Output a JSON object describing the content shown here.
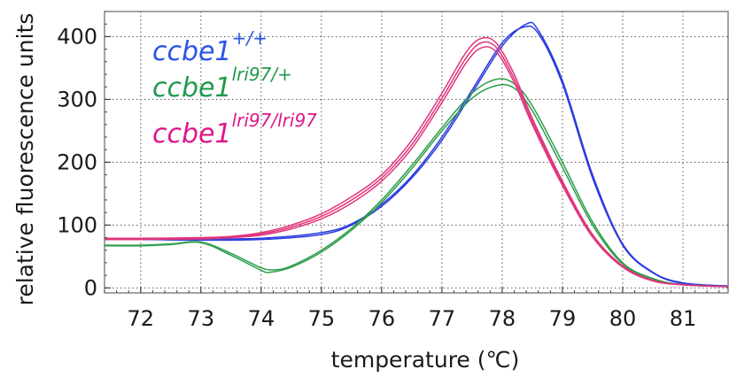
{
  "chart_data": {
    "type": "line",
    "title": "",
    "xlabel": "temperature (℃)",
    "ylabel": "relative fluorescence units",
    "xlim": [
      71.4,
      81.75
    ],
    "ylim": [
      -8,
      440
    ],
    "xticks": [
      72,
      73,
      74,
      75,
      76,
      77,
      78,
      79,
      80,
      81
    ],
    "yticks": [
      0,
      100,
      200,
      300,
      400
    ],
    "grid": true,
    "legend_position": "top-left",
    "series": [
      {
        "name": "ccbe1+/+",
        "label_base": "ccbe1",
        "label_sup": "+/+",
        "color": "#2a3be0",
        "label_color": "#2b55e6",
        "replicates": [
          [
            [
              71.4,
              77
            ],
            [
              72,
              77
            ],
            [
              73,
              76
            ],
            [
              74,
              77
            ],
            [
              75,
              85
            ],
            [
              75.5,
              100
            ],
            [
              76,
              130
            ],
            [
              76.5,
              175
            ],
            [
              77,
              235
            ],
            [
              77.5,
              310
            ],
            [
              78,
              385
            ],
            [
              78.4,
              420
            ],
            [
              78.6,
              410
            ],
            [
              79,
              330
            ],
            [
              79.5,
              180
            ],
            [
              80,
              70
            ],
            [
              80.5,
              25
            ],
            [
              81,
              8
            ],
            [
              81.75,
              3
            ]
          ],
          [
            [
              71.4,
              78
            ],
            [
              72,
              78
            ],
            [
              73,
              78
            ],
            [
              74,
              79
            ],
            [
              75,
              88
            ],
            [
              75.5,
              102
            ],
            [
              76,
              133
            ],
            [
              76.5,
              178
            ],
            [
              77,
              240
            ],
            [
              77.5,
              315
            ],
            [
              78,
              390
            ],
            [
              78.35,
              415
            ],
            [
              78.6,
              405
            ],
            [
              79,
              325
            ],
            [
              79.5,
              175
            ],
            [
              80,
              68
            ],
            [
              80.5,
              24
            ],
            [
              81,
              7
            ],
            [
              81.75,
              3
            ]
          ]
        ]
      },
      {
        "name": "ccbe1lri97/+",
        "label_base": "ccbe1",
        "label_sup": "lri97/+",
        "color": "#2e9e4a",
        "label_color": "#1f9a4c",
        "replicates": [
          [
            [
              71.4,
              68
            ],
            [
              72,
              68
            ],
            [
              72.5,
              70
            ],
            [
              73,
              73
            ],
            [
              73.5,
              55
            ],
            [
              74,
              32
            ],
            [
              74.25,
              29
            ],
            [
              74.5,
              35
            ],
            [
              75,
              60
            ],
            [
              75.5,
              95
            ],
            [
              76,
              140
            ],
            [
              76.5,
              195
            ],
            [
              77,
              255
            ],
            [
              77.5,
              310
            ],
            [
              77.9,
              332
            ],
            [
              78.2,
              325
            ],
            [
              78.5,
              290
            ],
            [
              79,
              200
            ],
            [
              79.5,
              105
            ],
            [
              80,
              40
            ],
            [
              80.5,
              15
            ],
            [
              81,
              5
            ],
            [
              81.75,
              2
            ]
          ],
          [
            [
              71.4,
              67
            ],
            [
              72,
              67
            ],
            [
              72.5,
              69
            ],
            [
              73,
              72
            ],
            [
              73.5,
              52
            ],
            [
              74,
              28
            ],
            [
              74.15,
              25
            ],
            [
              74.5,
              33
            ],
            [
              75,
              57
            ],
            [
              75.5,
              92
            ],
            [
              76,
              136
            ],
            [
              76.5,
              190
            ],
            [
              77,
              250
            ],
            [
              77.5,
              302
            ],
            [
              77.9,
              322
            ],
            [
              78.2,
              318
            ],
            [
              78.5,
              282
            ],
            [
              79,
              192
            ],
            [
              79.5,
              100
            ],
            [
              80,
              38
            ],
            [
              80.5,
              14
            ],
            [
              81,
              5
            ],
            [
              81.75,
              2
            ]
          ]
        ]
      },
      {
        "name": "ccbe1lri97/lri97",
        "label_base": "ccbe1",
        "label_sup": "lri97/lri97",
        "color": "#e0357c",
        "label_color": "#e0178a",
        "replicates": [
          [
            [
              71.4,
              79
            ],
            [
              72,
              79
            ],
            [
              73,
              80
            ],
            [
              73.5,
              82
            ],
            [
              74,
              88
            ],
            [
              74.5,
              100
            ],
            [
              75,
              118
            ],
            [
              75.5,
              145
            ],
            [
              76,
              180
            ],
            [
              76.5,
              235
            ],
            [
              77,
              310
            ],
            [
              77.4,
              375
            ],
            [
              77.65,
              397
            ],
            [
              77.9,
              390
            ],
            [
              78.2,
              340
            ],
            [
              78.5,
              270
            ],
            [
              79,
              170
            ],
            [
              79.5,
              85
            ],
            [
              80,
              35
            ],
            [
              80.5,
              12
            ],
            [
              81,
              5
            ],
            [
              81.75,
              2
            ]
          ],
          [
            [
              71.4,
              78
            ],
            [
              72,
              78
            ],
            [
              73,
              79
            ],
            [
              73.5,
              81
            ],
            [
              74,
              86
            ],
            [
              74.5,
              97
            ],
            [
              75,
              114
            ],
            [
              75.5,
              140
            ],
            [
              76,
              175
            ],
            [
              76.5,
              228
            ],
            [
              77,
              302
            ],
            [
              77.4,
              366
            ],
            [
              77.65,
              390
            ],
            [
              77.9,
              383
            ],
            [
              78.2,
              333
            ],
            [
              78.5,
              265
            ],
            [
              79,
              166
            ],
            [
              79.5,
              83
            ],
            [
              80,
              34
            ],
            [
              80.5,
              12
            ],
            [
              81,
              5
            ],
            [
              81.75,
              2
            ]
          ],
          [
            [
              71.4,
              77
            ],
            [
              72,
              77
            ],
            [
              73,
              78
            ],
            [
              73.5,
              80
            ],
            [
              74,
              84
            ],
            [
              74.5,
              94
            ],
            [
              75,
              110
            ],
            [
              75.5,
              135
            ],
            [
              76,
              170
            ],
            [
              76.5,
              222
            ],
            [
              77,
              295
            ],
            [
              77.4,
              358
            ],
            [
              77.65,
              382
            ],
            [
              77.9,
              376
            ],
            [
              78.2,
              327
            ],
            [
              78.5,
              260
            ],
            [
              79,
              163
            ],
            [
              79.5,
              81
            ],
            [
              80,
              33
            ],
            [
              80.5,
              11
            ],
            [
              81,
              5
            ],
            [
              81.75,
              2
            ]
          ]
        ]
      }
    ]
  }
}
